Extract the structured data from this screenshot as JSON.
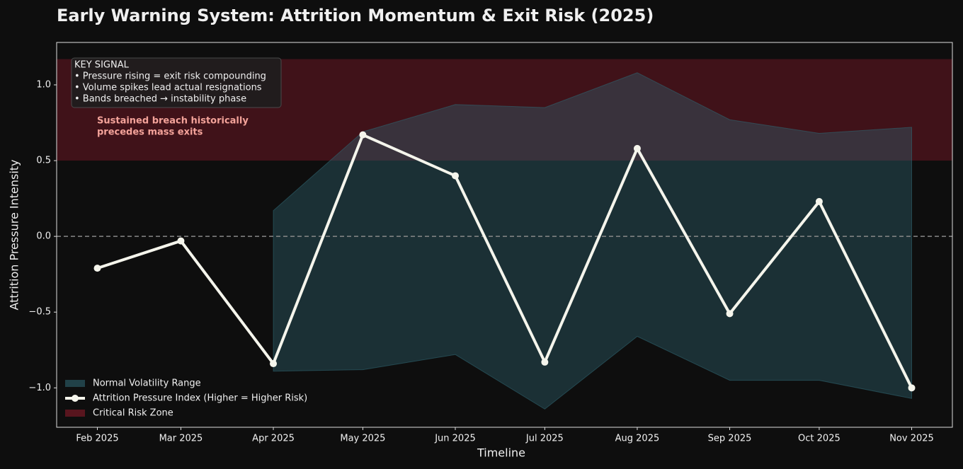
{
  "chart_data": {
    "type": "line",
    "title": "Early Warning System: Attrition Momentum & Exit Risk (2025)",
    "xlabel": "Timeline",
    "ylabel": "Attrition Pressure Intensity",
    "x": [
      "Feb 2025",
      "Mar 2025",
      "Apr 2025",
      "May 2025",
      "Jun 2025",
      "Jul 2025",
      "Aug 2025",
      "Sep 2025",
      "Oct 2025",
      "Nov 2025"
    ],
    "ylim": [
      -1.26,
      1.28
    ],
    "yticks": [
      {
        "value": -1,
        "label": "−1.0"
      },
      {
        "value": -0.5,
        "label": "−0.5"
      },
      {
        "value": 0,
        "label": "0.0"
      },
      0.5,
      {
        "value": 1,
        "label": "1.0"
      }
    ],
    "series": [
      {
        "name": "Attrition Pressure Index (Higher = Higher Risk)",
        "color": "#f5f5ec",
        "values": [
          -0.21,
          -0.03,
          -0.84,
          0.67,
          0.4,
          -0.83,
          0.58,
          -0.51,
          0.23,
          -1.0
        ]
      }
    ],
    "band": {
      "name": "Normal Volatility Range",
      "color": "#2f6470",
      "upper": [
        null,
        null,
        0.17,
        0.69,
        0.87,
        0.85,
        1.08,
        0.77,
        0.68,
        0.72
      ],
      "lower": [
        null,
        null,
        -0.89,
        -0.88,
        -0.78,
        -1.14,
        -0.66,
        -0.95,
        -0.95,
        -1.07
      ]
    },
    "critical_zone": {
      "name": "Critical Risk Zone",
      "color": "#8b1a2a",
      "range": [
        0.5,
        1.17
      ]
    },
    "reference_line": 0,
    "annotations": {
      "key_signal": [
        "KEY SIGNAL",
        "• Pressure rising = exit risk compounding",
        "• Volume spikes lead actual resignations",
        "• Bands breached → instability phase"
      ],
      "breach_note": [
        "Sustained breach historically",
        "precedes mass exits"
      ]
    },
    "legend": "lower left"
  }
}
